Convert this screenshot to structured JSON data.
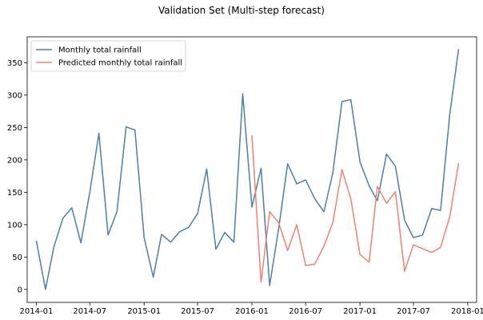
{
  "chart_data": {
    "type": "line",
    "title": "Validation Set (Multi-step forecast)",
    "xlabel": "",
    "ylabel": "",
    "xlim": [
      "2013-12-01",
      "2018-01-31"
    ],
    "ylim": [
      -20,
      390
    ],
    "x_ticks": [
      "2014-01",
      "2014-07",
      "2015-01",
      "2015-07",
      "2016-01",
      "2016-07",
      "2017-01",
      "2017-07",
      "2018-01"
    ],
    "y_ticks": [
      0,
      50,
      100,
      150,
      200,
      250,
      300,
      350
    ],
    "grid": false,
    "legend_position": "upper left",
    "series": [
      {
        "name": "Monthly total rainfall",
        "color": "#4a7faf",
        "x": [
          "2014-01",
          "2014-02",
          "2014-03",
          "2014-04",
          "2014-05",
          "2014-06",
          "2014-07",
          "2014-08",
          "2014-09",
          "2014-10",
          "2014-11",
          "2014-12",
          "2015-01",
          "2015-02",
          "2015-03",
          "2015-04",
          "2015-05",
          "2015-06",
          "2015-07",
          "2015-08",
          "2015-09",
          "2015-10",
          "2015-11",
          "2015-12",
          "2016-01",
          "2016-02",
          "2016-03",
          "2016-04",
          "2016-05",
          "2016-06",
          "2016-07",
          "2016-08",
          "2016-09",
          "2016-10",
          "2016-11",
          "2016-12",
          "2017-01",
          "2017-02",
          "2017-03",
          "2017-04",
          "2017-05",
          "2017-06",
          "2017-07",
          "2017-08",
          "2017-09",
          "2017-10",
          "2017-11",
          "2017-12"
        ],
        "values": [
          75,
          0,
          65,
          110,
          126,
          72,
          150,
          241,
          84,
          120,
          251,
          246,
          80,
          19,
          85,
          73,
          89,
          96,
          117,
          186,
          62,
          88,
          73,
          302,
          127,
          187,
          6,
          95,
          194,
          163,
          169,
          140,
          120,
          180,
          290,
          293,
          197,
          160,
          137,
          209,
          190,
          107,
          80,
          84,
          125,
          122,
          270,
          371
        ]
      },
      {
        "name": "Predicted monthly total rainfall",
        "color": "#f08273",
        "x": [
          "2016-01",
          "2016-02",
          "2016-03",
          "2016-04",
          "2016-05",
          "2016-06",
          "2016-07",
          "2016-08",
          "2016-09",
          "2016-10",
          "2016-11",
          "2016-12",
          "2017-01",
          "2017-02",
          "2017-03",
          "2017-04",
          "2017-05",
          "2017-06",
          "2017-07",
          "2017-08",
          "2017-09",
          "2017-10",
          "2017-11",
          "2017-12"
        ],
        "values": [
          238,
          11,
          120,
          103,
          60,
          100,
          37,
          39,
          67,
          103,
          185,
          140,
          54,
          42,
          159,
          133,
          151,
          28,
          69,
          63,
          57,
          65,
          112,
          195
        ]
      }
    ]
  }
}
